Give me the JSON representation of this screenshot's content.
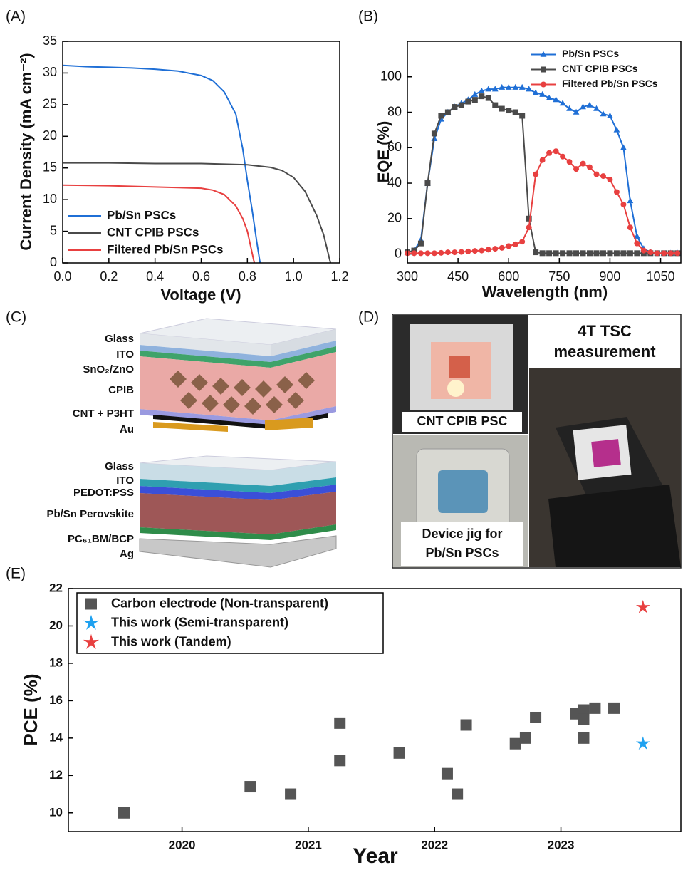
{
  "panel_labels": [
    "(A)",
    "(B)",
    "(C)",
    "(D)",
    "(E)"
  ],
  "chart_data": [
    {
      "type": "line",
      "xlabel": "Voltage (V)",
      "ylabel": "Current Density (mA cm⁻²)",
      "xlim": [
        0,
        1.2
      ],
      "ylim": [
        0,
        35
      ],
      "xticks": [
        {
          "value": 0,
          "label": "0.0"
        },
        0.2,
        0.4,
        0.6,
        0.8,
        {
          "value": 1,
          "label": "1.0"
        },
        1.2
      ],
      "yticks": [
        0,
        5,
        10,
        15,
        20,
        25,
        30,
        35
      ],
      "legend": "lower left",
      "series": [
        {
          "name": "Pb/Sn PSCs",
          "color": "#1f6fd6",
          "x": [
            0,
            0.1,
            0.2,
            0.3,
            0.4,
            0.5,
            0.6,
            0.65,
            0.7,
            0.75,
            0.78,
            0.8,
            0.82,
            0.84,
            0.855
          ],
          "values": [
            31.2,
            31.0,
            30.9,
            30.8,
            30.6,
            30.3,
            29.6,
            28.8,
            27.0,
            23.5,
            18.0,
            13.0,
            8.5,
            3.5,
            0
          ]
        },
        {
          "name": "CNT CPIB PSCs",
          "color": "#4a4a4a",
          "x": [
            0,
            0.2,
            0.4,
            0.6,
            0.8,
            0.9,
            0.95,
            1.0,
            1.05,
            1.1,
            1.13,
            1.16
          ],
          "values": [
            15.8,
            15.8,
            15.7,
            15.7,
            15.5,
            15.1,
            14.6,
            13.5,
            11.3,
            7.5,
            4.5,
            0
          ]
        },
        {
          "name": "Filtered Pb/Sn PSCs",
          "color": "#e84040",
          "x": [
            0,
            0.2,
            0.4,
            0.6,
            0.65,
            0.7,
            0.75,
            0.78,
            0.8,
            0.815,
            0.83
          ],
          "values": [
            12.3,
            12.2,
            12.0,
            11.8,
            11.5,
            10.8,
            9.0,
            7.0,
            5.0,
            2.5,
            0
          ]
        }
      ]
    },
    {
      "type": "line",
      "xlabel": "Wavelength (nm)",
      "ylabel": "EQE (%)",
      "xlim": [
        300,
        1110
      ],
      "ylim": [
        -5,
        120
      ],
      "xticks": [
        300,
        450,
        600,
        750,
        900,
        1050
      ],
      "yticks": [
        0,
        20,
        40,
        60,
        80,
        100
      ],
      "legend": "upper right",
      "x": [
        300,
        320,
        340,
        360,
        380,
        400,
        420,
        440,
        460,
        480,
        500,
        520,
        540,
        560,
        580,
        600,
        620,
        640,
        660,
        680,
        700,
        720,
        740,
        760,
        780,
        800,
        820,
        840,
        860,
        880,
        900,
        920,
        940,
        960,
        980,
        1000,
        1020,
        1040,
        1060,
        1080,
        1100
      ],
      "series": [
        {
          "name": "Pb/Sn PSCs",
          "color": "#1f6fd6",
          "marker": "triangle",
          "values": [
            1,
            2,
            8,
            40,
            65,
            76,
            80,
            83,
            85,
            87,
            90,
            92,
            93,
            93,
            94,
            94,
            94,
            94,
            93,
            91,
            90,
            88,
            87,
            85,
            82,
            80,
            83,
            84,
            82,
            79,
            78,
            70,
            60,
            30,
            10,
            3,
            1,
            0.5,
            0.5,
            0.5,
            0.5
          ]
        },
        {
          "name": "CNT CPIB PSCs",
          "color": "#4a4a4a",
          "marker": "square",
          "values": [
            1,
            2,
            6,
            40,
            68,
            78,
            80,
            83,
            84,
            86,
            87,
            89,
            88,
            84,
            82,
            81,
            80,
            78,
            20,
            1,
            0.5,
            0.5,
            0.5,
            0.5,
            0.5,
            0.5,
            0.5,
            0.5,
            0.5,
            0.5,
            0.5,
            0.5,
            0.5,
            0.5,
            0.5,
            0.5,
            0.5,
            0.5,
            0.5,
            0.5,
            0.5
          ]
        },
        {
          "name": "Filtered Pb/Sn PSCs",
          "color": "#e84040",
          "marker": "circle",
          "values": [
            0.5,
            0.5,
            0.5,
            0.5,
            0.5,
            0.7,
            1,
            1,
            1.2,
            1.5,
            1.8,
            2,
            2.5,
            3,
            3.5,
            4.5,
            5.5,
            7,
            15,
            45,
            53,
            57,
            58,
            55,
            52,
            48,
            51,
            49,
            45,
            44,
            42,
            35,
            28,
            15,
            6,
            2,
            1,
            0.5,
            0.5,
            0.5,
            0.5
          ]
        }
      ]
    },
    {
      "type": "scatter",
      "xlabel": "Year",
      "ylabel": "PCE (%)",
      "xlim": [
        2019.1,
        2023.95
      ],
      "ylim": [
        9,
        22
      ],
      "xticks": [
        2020,
        2021,
        2022,
        2023
      ],
      "yticks": [
        10,
        12,
        14,
        16,
        18,
        20,
        22
      ],
      "legend": "upper left",
      "series": [
        {
          "name": "Carbon electrode (Non-transparent)",
          "color": "#555555",
          "marker": "square",
          "x": [
            2019.54,
            2020.54,
            2020.86,
            2021.25,
            2021.25,
            2021.72,
            2022.1,
            2022.18,
            2022.25,
            2022.64,
            2022.72,
            2022.8,
            2023.12,
            2023.18,
            2023.18,
            2023.18,
            2023.27,
            2023.42
          ],
          "values": [
            10.0,
            11.4,
            11.0,
            14.8,
            12.8,
            13.2,
            12.1,
            11.0,
            14.7,
            13.7,
            14.0,
            15.1,
            15.3,
            15.5,
            15.0,
            14.0,
            15.6,
            15.6
          ]
        },
        {
          "name": "This work (Semi-transparent)",
          "color": "#1ea1f0",
          "marker": "star",
          "x": [
            2023.65
          ],
          "values": [
            13.7
          ]
        },
        {
          "name": "This work (Tandem)",
          "color": "#e84040",
          "marker": "star",
          "x": [
            2023.65
          ],
          "values": [
            21.0
          ]
        }
      ]
    }
  ],
  "diagram": {
    "top_stack": [
      "Glass",
      "ITO",
      "SnO₂/ZnO",
      "CPIB",
      "CNT + P3HT",
      "Au"
    ],
    "bottom_stack": [
      "Glass",
      "ITO",
      "PEDOT:PSS",
      "Pb/Sn Perovskite",
      "PC₆₁BM/BCP",
      "Ag"
    ]
  },
  "photo": {
    "title_lines": [
      "4T TSC",
      "measurement"
    ],
    "caption_top": "CNT CPIB PSC",
    "caption_bottom_lines": [
      "Device jig for",
      "Pb/Sn PSCs"
    ]
  }
}
